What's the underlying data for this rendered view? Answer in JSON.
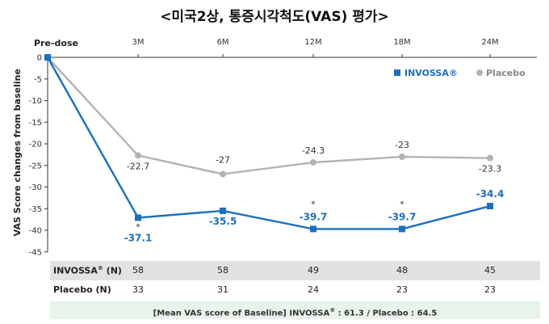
{
  "chart_data": {
    "type": "line",
    "title": "<미국2상, 통증시각척도(VAS) 평가>",
    "ylabel": "VAS Score changes from baseline",
    "x": [
      "Pre-dose",
      "3M",
      "6M",
      "12M",
      "18M",
      "24M"
    ],
    "ylim": [
      -45,
      0
    ],
    "yticks": [
      0,
      -5,
      -10,
      -15,
      -20,
      -25,
      -30,
      -35,
      -40,
      -45
    ],
    "grid": false,
    "legend_position": "top-right",
    "series": [
      {
        "name": "INVOSSA®",
        "color": "#1b6fc0",
        "marker": "square",
        "values": [
          0,
          -37.1,
          -35.5,
          -39.7,
          -39.7,
          -34.4
        ],
        "labels": [
          "",
          "-37.1",
          "-35.5",
          "-39.7",
          "-39.7",
          "-34.4"
        ],
        "significant": [
          false,
          true,
          false,
          true,
          true,
          false
        ]
      },
      {
        "name": "Placebo",
        "color": "#b3b3b3",
        "marker": "circle",
        "values": [
          0,
          -22.7,
          -27,
          -24.3,
          -23,
          -23.3
        ],
        "labels": [
          "",
          "-22.7",
          "-27",
          "-24.3",
          "-23",
          "-23.3"
        ]
      }
    ],
    "significance_marker": "*"
  },
  "n_table": {
    "invossa": {
      "label": "INVOSSA",
      "reg": "®",
      "suffix": " (N)",
      "values": [
        "58",
        "58",
        "49",
        "48",
        "45"
      ]
    },
    "placebo": {
      "label": "Placebo (N)",
      "values": [
        "33",
        "31",
        "24",
        "23",
        "23"
      ]
    }
  },
  "baseline_note": {
    "prefix": "[Mean VAS score of Baseline] INVOSSA",
    "reg": "®",
    "suffix": " : 61.3 / Placebo : 64.5"
  },
  "colors": {
    "invossa": "#1b6fc0",
    "placebo": "#b3b3b3",
    "axis": "#333333"
  }
}
